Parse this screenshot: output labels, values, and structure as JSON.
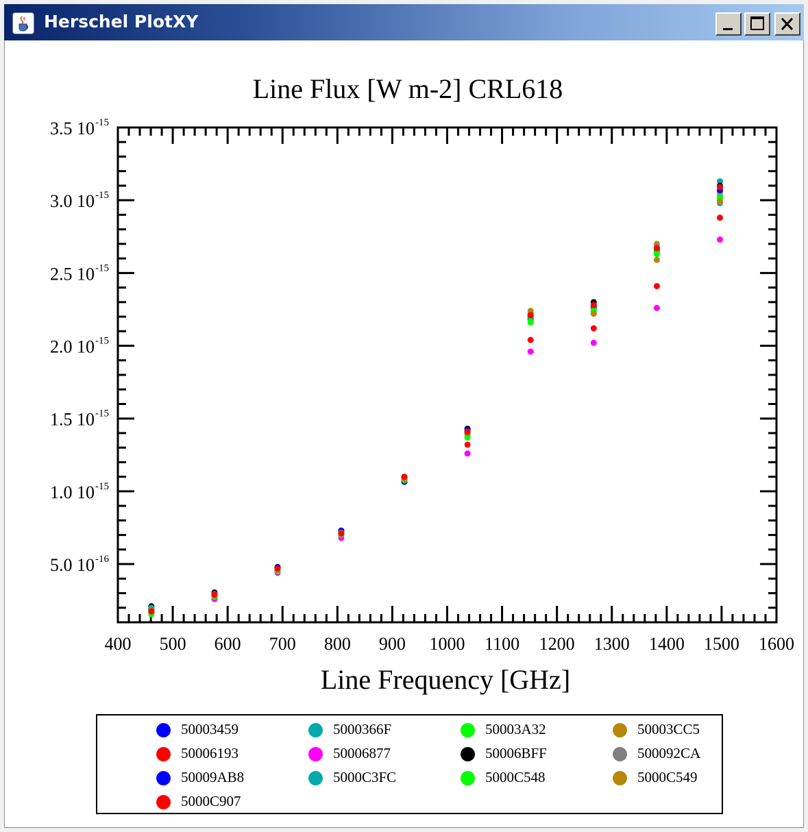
{
  "window": {
    "title": "Herschel PlotXY",
    "app_icon": "java-cup-icon",
    "controls": [
      "minimize-icon",
      "maximize-icon",
      "close-icon"
    ]
  },
  "chart_data": {
    "type": "scatter",
    "title": "Line Flux [W m-2] CRL618",
    "xlabel": "Line Frequency [GHz]",
    "ylabel": "",
    "xlim": [
      400,
      1600
    ],
    "ylim": [
      1e-16,
      3.5e-15
    ],
    "x_ticks": [
      400,
      500,
      600,
      700,
      800,
      900,
      1000,
      1100,
      1200,
      1300,
      1400,
      1500,
      1600
    ],
    "y_ticks": [
      {
        "value": 5e-16,
        "mantissa": "5.0",
        "exponent": "-16"
      },
      {
        "value": 1e-15,
        "mantissa": "1.0",
        "exponent": "-15"
      },
      {
        "value": 1.5e-15,
        "mantissa": "1.5",
        "exponent": "-15"
      },
      {
        "value": 2e-15,
        "mantissa": "2.0",
        "exponent": "-15"
      },
      {
        "value": 2.5e-15,
        "mantissa": "2.5",
        "exponent": "-15"
      },
      {
        "value": 3e-15,
        "mantissa": "3.0",
        "exponent": "-15"
      },
      {
        "value": 3.5e-15,
        "mantissa": "3.5",
        "exponent": "-15"
      }
    ],
    "grid": false,
    "legend_position": "bottom",
    "x": [
      461,
      576,
      691,
      807,
      922,
      1037,
      1152,
      1267,
      1382,
      1497
    ],
    "series": [
      {
        "name": "50003459",
        "color": "#0000ff",
        "values": [
          1.9e-16,
          2.95e-16,
          4.8e-16,
          7.3e-16,
          1.07e-15,
          1.41e-15,
          2.2e-15,
          2.27e-15,
          2.66e-15,
          3.06e-15
        ]
      },
      {
        "name": "5000366F",
        "color": "#00aaaa",
        "values": [
          2.05e-16,
          2.85e-16,
          4.6e-16,
          7.1e-16,
          1.08e-15,
          1.39e-15,
          2.19e-15,
          2.26e-15,
          2.67e-15,
          3.13e-15
        ]
      },
      {
        "name": "50003A32",
        "color": "#00ff00",
        "values": [
          1.6e-16,
          2.7e-16,
          4.5e-16,
          7e-16,
          1.08e-15,
          1.37e-15,
          2.16e-15,
          2.24e-15,
          2.63e-15,
          3.03e-15
        ]
      },
      {
        "name": "50003CC5",
        "color": "#b8860b",
        "values": [
          1.95e-16,
          2.9e-16,
          4.7e-16,
          7.2e-16,
          1.085e-15,
          1.4e-15,
          2.24e-15,
          2.23e-15,
          2.7e-15,
          3e-15
        ]
      },
      {
        "name": "50006193",
        "color": "#ff0000",
        "values": [
          1.85e-16,
          2.8e-16,
          4.55e-16,
          7.05e-16,
          1.09e-15,
          1.32e-15,
          2.04e-15,
          2.12e-15,
          2.41e-15,
          2.88e-15
        ]
      },
      {
        "name": "50006877",
        "color": "#ff00ff",
        "values": [
          1.7e-16,
          2.6e-16,
          4.4e-16,
          6.8e-16,
          1.07e-15,
          1.26e-15,
          1.96e-15,
          2.02e-15,
          2.26e-15,
          2.73e-15
        ]
      },
      {
        "name": "50006BFF",
        "color": "#000000",
        "values": [
          2.1e-16,
          3.05e-16,
          4.75e-16,
          7.25e-16,
          1.095e-15,
          1.43e-15,
          2.21e-15,
          2.3e-15,
          2.64e-15,
          3.1e-15
        ]
      },
      {
        "name": "500092CA",
        "color": "#808080",
        "values": [
          1.9e-16,
          2.95e-16,
          4.65e-16,
          7.15e-16,
          1.08e-15,
          1.4e-15,
          2.22e-15,
          2.28e-15,
          2.68e-15,
          3.05e-15
        ]
      },
      {
        "name": "50009AB8",
        "color": "#0000ff",
        "values": [
          1.95e-16,
          2.9e-16,
          4.7e-16,
          7.3e-16,
          1.065e-15,
          1.42e-15,
          2.18e-15,
          2.26e-15,
          2.65e-15,
          3.07e-15
        ]
      },
      {
        "name": "5000C3FC",
        "color": "#00aaaa",
        "values": [
          2e-16,
          2.8e-16,
          4.6e-16,
          7.1e-16,
          1.075e-15,
          1.39e-15,
          2.2e-15,
          2.25e-15,
          2.66e-15,
          2.98e-15
        ]
      },
      {
        "name": "5000C548",
        "color": "#00ff00",
        "values": [
          1.55e-16,
          2.75e-16,
          4.5e-16,
          7e-16,
          1.08e-15,
          1.38e-15,
          2.17e-15,
          2.24e-15,
          2.64e-15,
          3.02e-15
        ]
      },
      {
        "name": "5000C549",
        "color": "#b8860b",
        "values": [
          1.8e-16,
          2.85e-16,
          4.6e-16,
          7.15e-16,
          1.085e-15,
          1.4e-15,
          2.23e-15,
          2.22e-15,
          2.59e-15,
          2.99e-15
        ]
      },
      {
        "name": "5000C907",
        "color": "#ff0000",
        "values": [
          1.75e-16,
          2.9e-16,
          4.7e-16,
          7.1e-16,
          1.1e-15,
          1.41e-15,
          2.21e-15,
          2.28e-15,
          2.67e-15,
          3.09e-15
        ]
      }
    ]
  }
}
